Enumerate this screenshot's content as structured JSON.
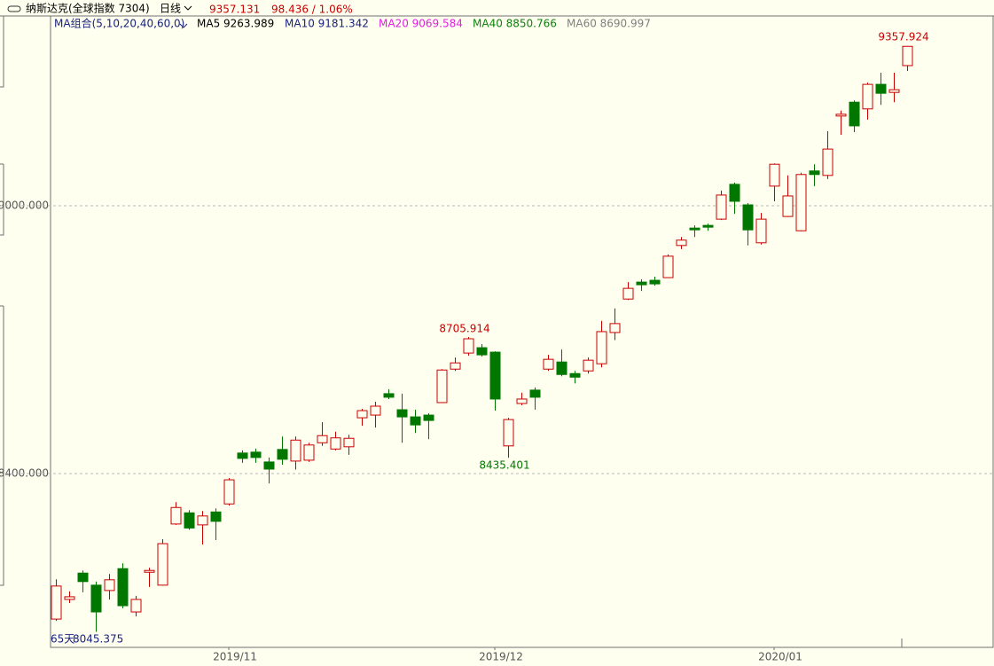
{
  "header": {
    "instrument": "纳斯达克(全球指数 7304)",
    "period": "日线",
    "change": "98.436 / 1.06%"
  },
  "chart_data": {
    "type": "candlestick",
    "ma_selector": "MA组合(5,10,20,40,60,0)",
    "ma_legend": [
      {
        "text": "MA5 9263.989",
        "color": "#000000"
      },
      {
        "text": "MA10 9181.342",
        "color": "#1a237e"
      },
      {
        "text": "MA20 9069.584",
        "color": "#e020e0"
      },
      {
        "text": "MA40 8850.766",
        "color": "#108010"
      },
      {
        "text": "MA60 8690.997",
        "color": "#808080"
      }
    ],
    "window_label": "65天",
    "up_color": "#c80000",
    "down_color": "#007800",
    "categories": [
      null,
      null,
      null,
      null,
      null,
      null,
      null,
      null,
      null,
      null,
      null,
      null,
      null,
      "2019/11",
      null,
      null,
      null,
      null,
      null,
      null,
      null,
      null,
      null,
      null,
      null,
      null,
      null,
      null,
      null,
      null,
      null,
      null,
      null,
      "2019/12",
      null,
      null,
      null,
      null,
      null,
      null,
      null,
      null,
      null,
      null,
      null,
      null,
      null,
      null,
      null,
      null,
      null,
      null,
      null,
      null,
      "2020/01",
      null,
      null,
      null,
      null,
      null,
      null,
      null,
      null,
      null,
      null
    ],
    "open": [
      8074,
      8118,
      8177,
      8150,
      8138,
      8187,
      8090,
      8179,
      8150,
      8287,
      8312,
      8285,
      8314,
      8332,
      8446,
      8448,
      8426,
      8454,
      8428,
      8430,
      8469,
      8455,
      8460,
      8525,
      8531,
      8579,
      8543,
      8527,
      8531,
      8559,
      8634,
      8670,
      8682,
      8672,
      8462,
      8557,
      8587,
      8634,
      8650,
      8624,
      8630,
      8646,
      8716,
      8791,
      8829,
      8833,
      8839,
      8911,
      8950,
      8956,
      8970,
      9048,
      9002,
      8917,
      9044,
      8976,
      8944,
      9078,
      9068,
      9201,
      9232,
      9217,
      9272,
      9254,
      9314
    ],
    "high": [
      8163,
      8136,
      8183,
      8158,
      8175,
      8199,
      8126,
      8189,
      8253,
      8336,
      8318,
      8316,
      8322,
      8390,
      8452,
      8456,
      8436,
      8483,
      8483,
      8469,
      8515,
      8494,
      8487,
      8545,
      8561,
      8589,
      8579,
      8543,
      8535,
      8634,
      8660,
      8705.914,
      8690,
      8674,
      8525,
      8581,
      8593,
      8666,
      8678,
      8630,
      8660,
      8742,
      8770,
      8829,
      8835,
      8841,
      8891,
      8930,
      8956,
      8960,
      9034,
      9052,
      9006,
      8984,
      9095,
      9068,
      9074,
      9093,
      9167,
      9213,
      9236,
      9276,
      9298,
      9298,
      9357.924
    ],
    "low": [
      8070,
      8110,
      8134,
      8045.375,
      8118,
      8098,
      8080,
      8146,
      8149,
      8285,
      8274,
      8241,
      8251,
      8328,
      8424,
      8424,
      8378,
      8420,
      8409,
      8426,
      8462,
      8452,
      8442,
      8507,
      8503,
      8567,
      8469,
      8491,
      8477,
      8558,
      8630,
      8664,
      8662,
      8541,
      8435.401,
      8553,
      8543,
      8630,
      8618,
      8602,
      8624,
      8638,
      8699,
      8789,
      8809,
      8821,
      8838,
      8903,
      8930,
      8944,
      8968,
      8982,
      8911,
      8913,
      9010,
      8975,
      8943,
      9044,
      9060,
      9159,
      9165,
      9193,
      9226,
      9232,
      9302
    ],
    "close": [
      8148,
      8124,
      8158,
      8090,
      8162,
      8104,
      8118,
      8183,
      8243,
      8324,
      8278,
      8305,
      8293,
      8386,
      8434,
      8436,
      8410,
      8432,
      8475,
      8464,
      8485,
      8480,
      8479,
      8541,
      8551,
      8571,
      8527,
      8509,
      8519,
      8632,
      8648,
      8702,
      8666,
      8567,
      8521,
      8567,
      8571,
      8656,
      8622,
      8616,
      8654,
      8718,
      8736,
      8815,
      8823,
      8825,
      8887,
      8923,
      8946,
      8952,
      9024,
      9010,
      8946,
      8970,
      9093,
      9022,
      9070,
      9070,
      9127,
      9205,
      9179,
      9272,
      9252,
      9260,
      9357.131
    ],
    "ylim": [
      8010.6,
      9425.2
    ],
    "yticks": [
      {
        "value": 8400,
        "label": "8400.000"
      },
      {
        "value": 9000,
        "label": "9000.000"
      }
    ],
    "grid": true
  }
}
